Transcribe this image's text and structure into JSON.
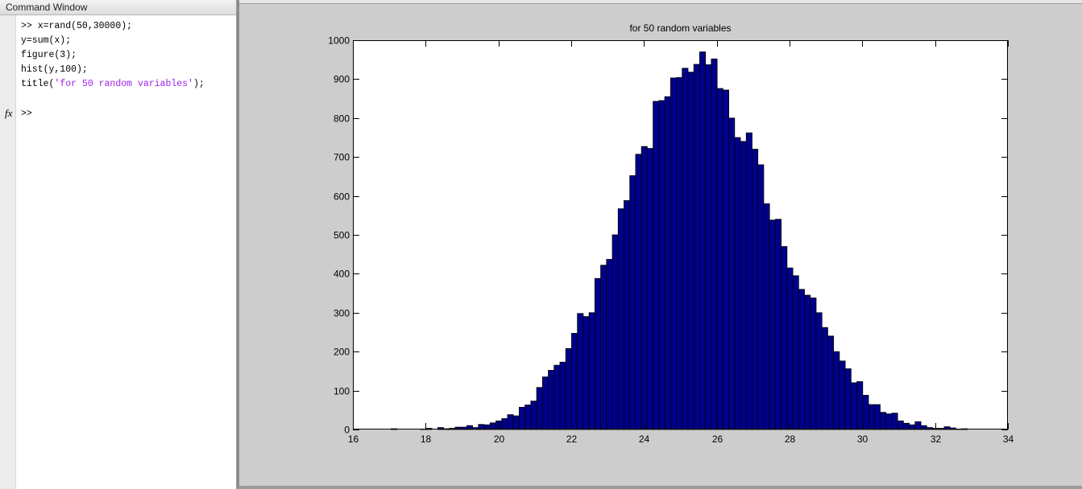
{
  "command_window": {
    "title": "Command Window",
    "lines": [
      {
        "prefix": ">> ",
        "text": "x=rand(50,30000);"
      },
      {
        "prefix": "",
        "text": "y=sum(x);"
      },
      {
        "prefix": "",
        "text": "figure(3);"
      },
      {
        "prefix": "",
        "text": "hist(y,100);"
      },
      {
        "prefix": "",
        "text": "title(",
        "string": "'for 50 random variables'",
        "suffix": ");"
      }
    ],
    "fx_label": "fx",
    "prompt": ">>"
  },
  "colors": {
    "bar_fill": "#00008b",
    "bar_edge": "#000000",
    "figure_bg": "#cdcdcd",
    "axes_bg": "#ffffff",
    "string_color": "#a020f0"
  },
  "chart_data": {
    "type": "bar",
    "title": "for 50 random variables",
    "xlabel": "",
    "ylabel": "",
    "xlim": [
      16,
      34
    ],
    "ylim": [
      0,
      1000
    ],
    "xticks": [
      16,
      18,
      20,
      22,
      24,
      26,
      28,
      30,
      32,
      34
    ],
    "yticks": [
      0,
      100,
      200,
      300,
      400,
      500,
      600,
      700,
      800,
      900,
      1000
    ],
    "grid": false,
    "bin_start": 17.05,
    "bin_width": 0.16,
    "values": [
      2,
      0,
      0,
      0,
      0,
      1,
      3,
      0,
      5,
      2,
      3,
      6,
      6,
      10,
      5,
      13,
      12,
      17,
      22,
      28,
      38,
      35,
      57,
      63,
      73,
      108,
      135,
      152,
      165,
      173,
      208,
      247,
      298,
      290,
      300,
      388,
      422,
      437,
      500,
      567,
      588,
      652,
      707,
      727,
      722,
      843,
      845,
      855,
      903,
      904,
      928,
      918,
      938,
      970,
      937,
      952,
      876,
      872,
      800,
      750,
      740,
      762,
      720,
      680,
      580,
      538,
      540,
      470,
      415,
      395,
      360,
      345,
      338,
      300,
      262,
      240,
      200,
      176,
      156,
      120,
      123,
      88,
      64,
      64,
      44,
      40,
      42,
      22,
      16,
      12,
      20,
      10,
      5,
      3,
      3,
      7,
      4,
      1,
      2,
      0
    ]
  }
}
